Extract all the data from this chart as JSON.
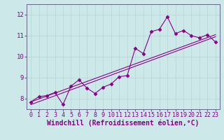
{
  "title": "",
  "xlabel": "Windchill (Refroidissement éolien,°C)",
  "ylabel": "",
  "background_color": "#cce8e8",
  "grid_color": "#aacccc",
  "line_color": "#880088",
  "xlim": [
    -0.5,
    23.5
  ],
  "ylim": [
    7.5,
    12.5
  ],
  "yticks": [
    8,
    9,
    10,
    11,
    12
  ],
  "xticks": [
    0,
    1,
    2,
    3,
    4,
    5,
    6,
    7,
    8,
    9,
    10,
    11,
    12,
    13,
    14,
    15,
    16,
    17,
    18,
    19,
    20,
    21,
    22,
    23
  ],
  "series1_x": [
    0,
    1,
    2,
    3,
    4,
    5,
    6,
    7,
    8,
    9,
    10,
    11,
    12,
    13,
    14,
    15,
    16,
    17,
    18,
    19,
    20,
    21,
    22,
    23
  ],
  "series1_y": [
    7.85,
    8.1,
    8.15,
    8.3,
    7.72,
    8.6,
    8.9,
    8.5,
    8.25,
    8.55,
    8.7,
    9.05,
    9.1,
    10.4,
    10.15,
    11.2,
    11.3,
    11.9,
    11.1,
    11.25,
    11.0,
    10.9,
    11.05,
    10.7
  ],
  "line1_x": [
    0,
    23
  ],
  "line1_y": [
    7.72,
    10.95
  ],
  "line2_x": [
    0,
    23
  ],
  "line2_y": [
    7.85,
    11.05
  ],
  "xlabel_fontsize": 7,
  "tick_fontsize": 6
}
